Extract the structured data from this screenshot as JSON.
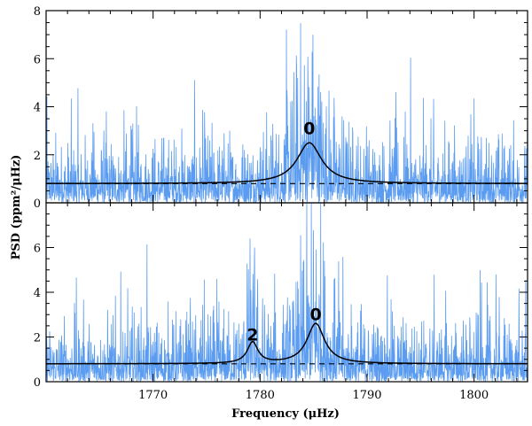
{
  "chart_data": [
    {
      "type": "line",
      "panel": "top",
      "xlim": [
        1760,
        1805
      ],
      "ylim": [
        0,
        8
      ],
      "yticks": [
        "0",
        "2",
        "4",
        "6",
        "8"
      ],
      "series": [
        {
          "kind": "psd",
          "color": "#5b9cf0",
          "x_range": [
            1760,
            1805
          ],
          "noise_mean": 0.8,
          "max_value": 8
        },
        {
          "kind": "fit",
          "color": "#000000",
          "background": 0.8,
          "modes": [
            {
              "label": "0",
              "center": 1784.6,
              "height": 1.7,
              "width": 2.8
            }
          ]
        },
        {
          "kind": "background",
          "color": "#000000",
          "style": "dashed",
          "value": 0.8
        }
      ],
      "annotations": [
        {
          "text": "0",
          "x": 1784.6,
          "y": 2.85
        }
      ]
    },
    {
      "type": "line",
      "panel": "bottom",
      "xlim": [
        1760,
        1805
      ],
      "ylim": [
        0,
        8
      ],
      "yticks": [
        "0",
        "2",
        "4",
        "6"
      ],
      "xticks": [
        "1770",
        "1780",
        "1790",
        "1800"
      ],
      "series": [
        {
          "kind": "psd",
          "color": "#5b9cf0",
          "x_range": [
            1760,
            1805
          ],
          "noise_mean": 0.8,
          "max_value": 8
        },
        {
          "kind": "fit",
          "color": "#000000",
          "background": 0.8,
          "modes": [
            {
              "label": "2",
              "center": 1779.3,
              "height": 0.95,
              "width": 1.2
            },
            {
              "label": "0",
              "center": 1785.2,
              "height": 1.8,
              "width": 2.0
            }
          ]
        },
        {
          "kind": "background",
          "color": "#000000",
          "style": "dashed",
          "value": 0.8
        }
      ],
      "annotations": [
        {
          "text": "2",
          "x": 1779.3,
          "y": 1.85
        },
        {
          "text": "0",
          "x": 1785.2,
          "y": 2.75
        }
      ]
    }
  ],
  "axes": {
    "xlabel": "Frequency (μHz)",
    "ylabel": "PSD (ppm²/μHz)"
  }
}
